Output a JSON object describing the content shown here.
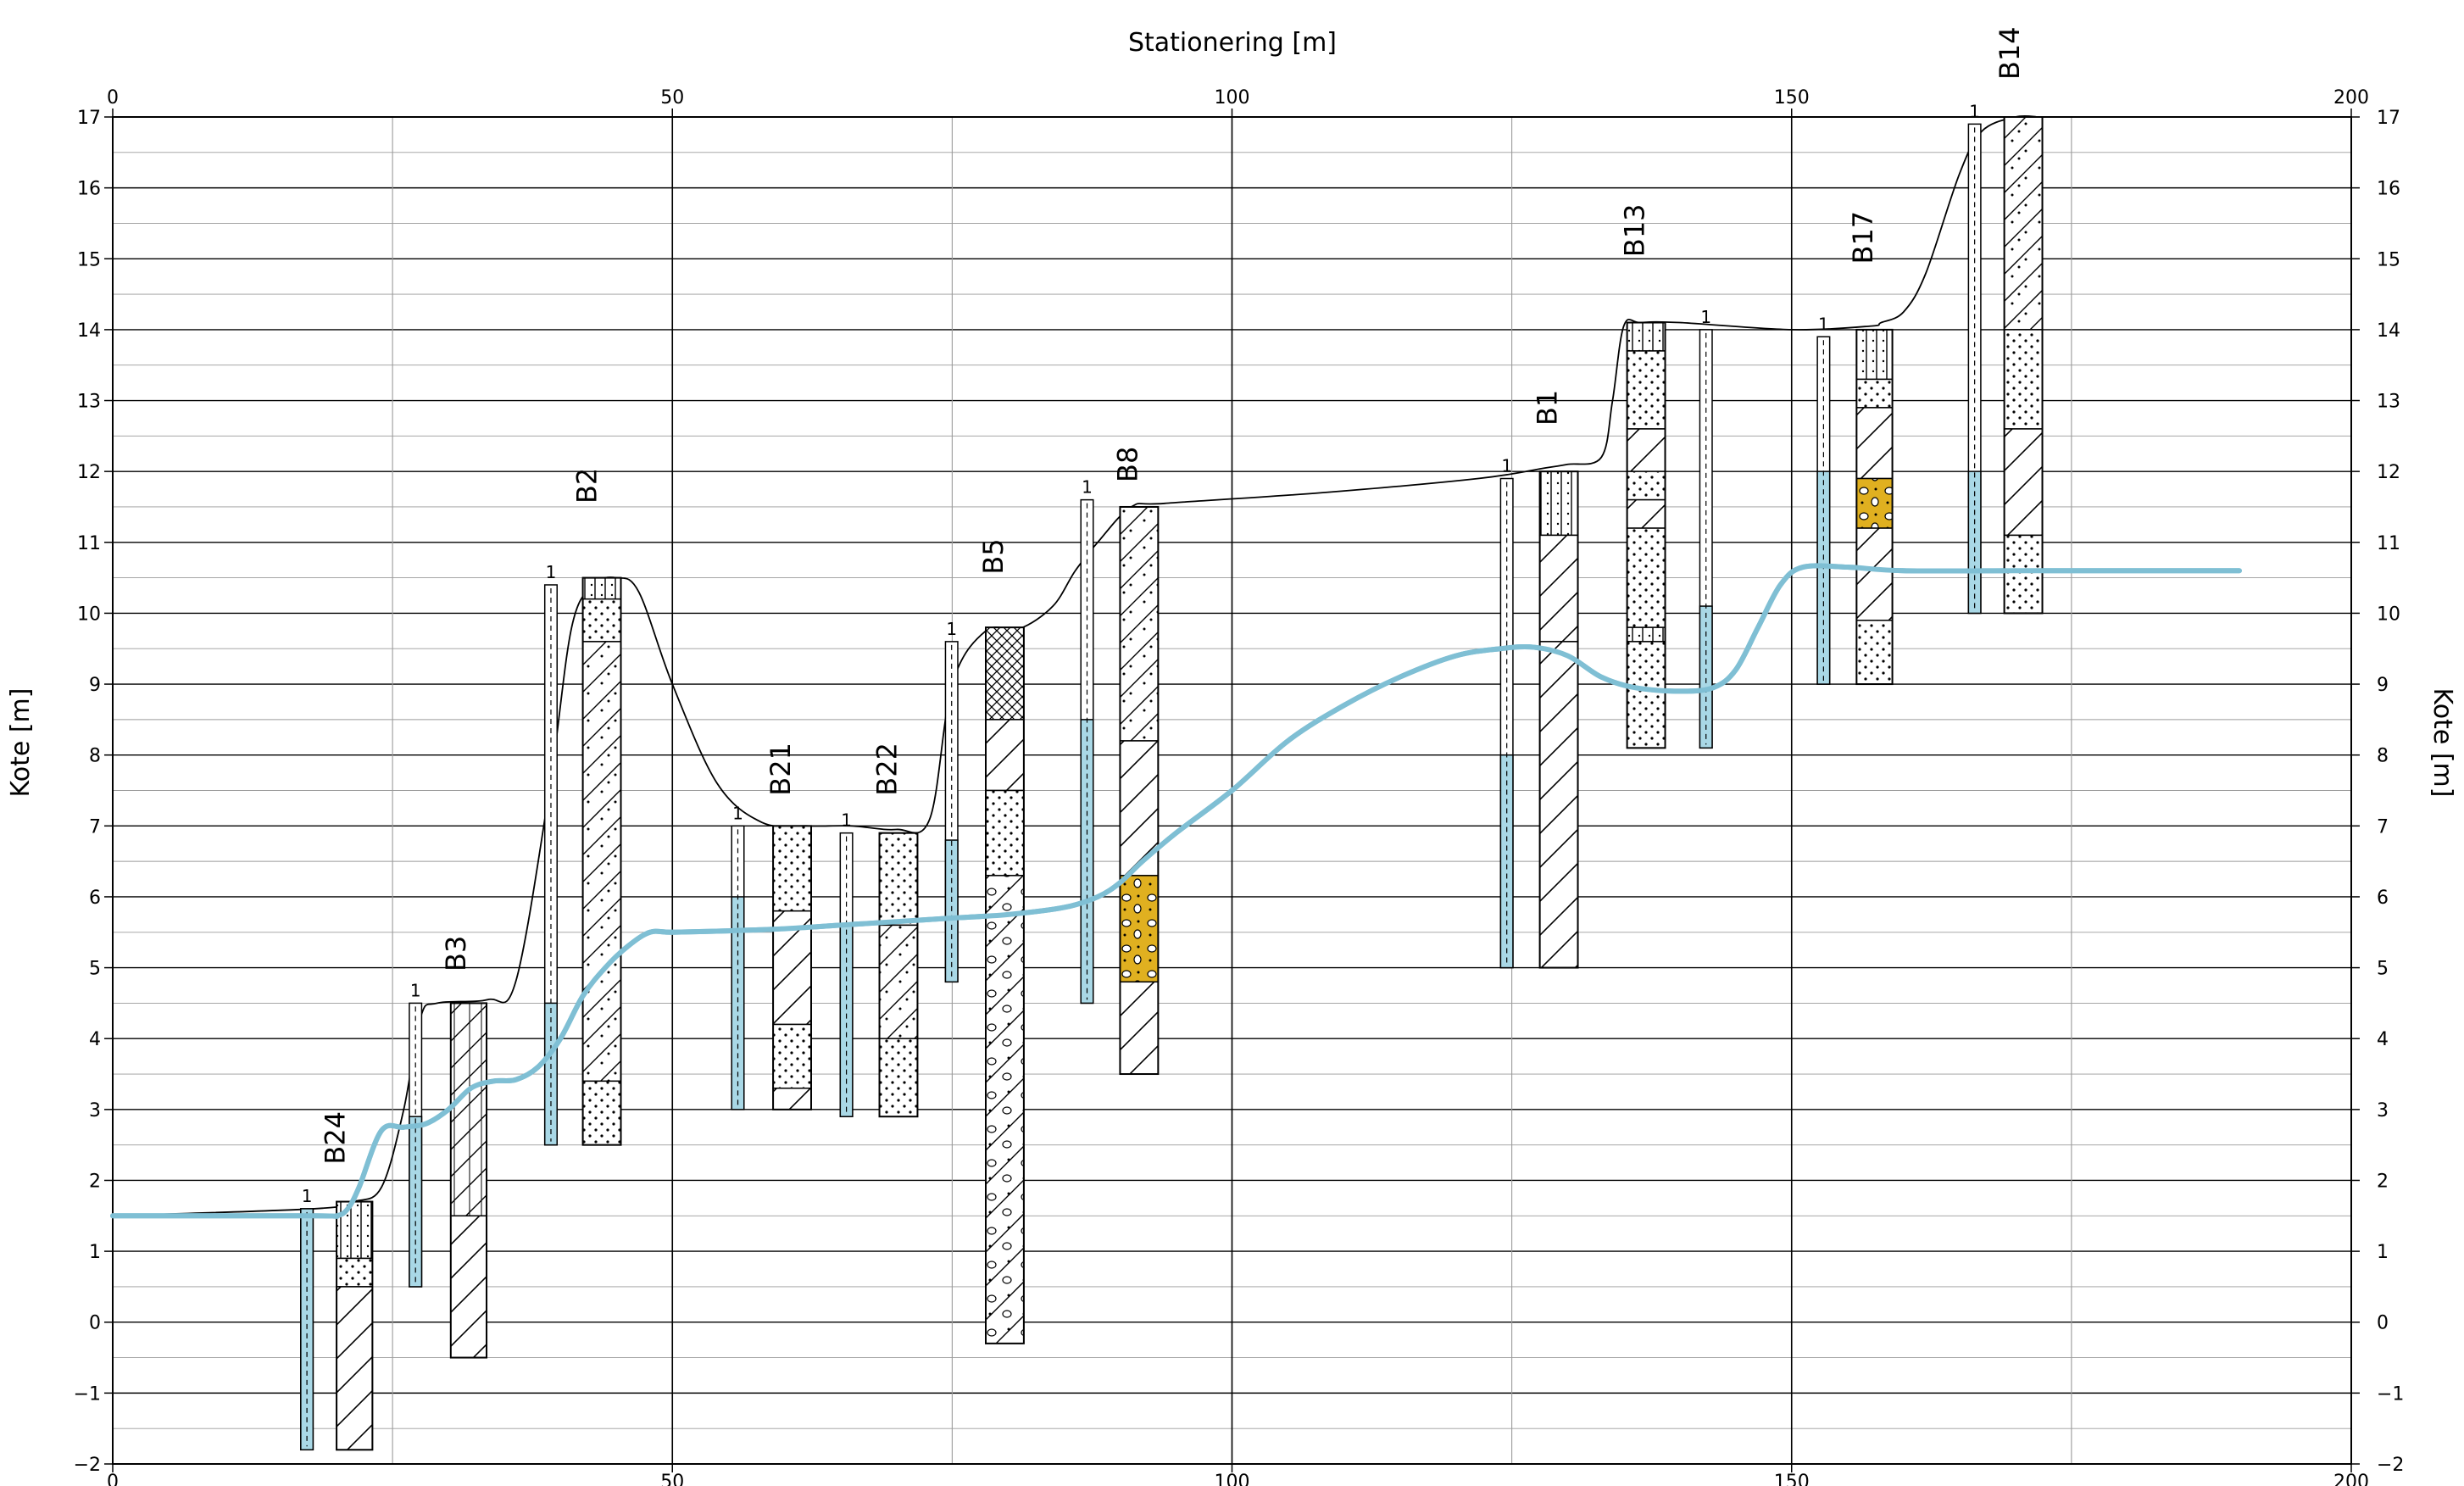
{
  "axes": {
    "x_title": "Stationering [m]",
    "y_title_left": "Kote [m]",
    "y_title_right": "Kote [m]",
    "x_range": [
      0,
      200
    ],
    "y_range": [
      -2,
      17
    ],
    "x_ticks": [
      0,
      50,
      100,
      150,
      200
    ],
    "y_ticks": [
      -2,
      -1,
      0,
      1,
      2,
      3,
      4,
      5,
      6,
      7,
      8,
      9,
      10,
      11,
      12,
      13,
      14,
      15,
      16,
      17
    ]
  },
  "colors": {
    "groundwater": "#7fbfd4",
    "filter": "#a9d8e6",
    "gravel": "#e0b020",
    "line": "#000000",
    "grid": "#000000"
  },
  "terrain_line": [
    [
      0,
      1.5
    ],
    [
      18,
      1.6
    ],
    [
      21.5,
      1.7
    ],
    [
      24,
      1.9
    ],
    [
      26,
      3.0
    ],
    [
      27.5,
      4.3
    ],
    [
      29,
      4.5
    ],
    [
      33.5,
      4.55
    ],
    [
      36,
      4.8
    ],
    [
      39,
      7.5
    ],
    [
      41,
      9.8
    ],
    [
      43,
      10.4
    ],
    [
      45,
      10.5
    ],
    [
      47,
      10.3
    ],
    [
      50,
      9.0
    ],
    [
      54,
      7.6
    ],
    [
      58,
      7.05
    ],
    [
      62,
      7.0
    ],
    [
      66,
      7.0
    ],
    [
      70,
      6.95
    ],
    [
      73,
      7.1
    ],
    [
      75,
      9.0
    ],
    [
      78,
      9.75
    ],
    [
      81,
      9.78
    ],
    [
      84,
      10.1
    ],
    [
      86,
      10.6
    ],
    [
      88,
      11.0
    ],
    [
      91,
      11.5
    ],
    [
      94,
      11.55
    ],
    [
      108,
      11.7
    ],
    [
      122,
      11.9
    ],
    [
      128,
      12.05
    ],
    [
      130,
      12.1
    ],
    [
      133,
      12.2
    ],
    [
      134,
      13.0
    ],
    [
      135,
      14.05
    ],
    [
      136.5,
      14.1
    ],
    [
      140,
      14.1
    ],
    [
      150,
      14.0
    ],
    [
      157,
      14.05
    ],
    [
      158,
      14.1
    ],
    [
      160,
      14.25
    ],
    [
      162,
      14.8
    ],
    [
      165,
      16.2
    ],
    [
      167,
      16.8
    ],
    [
      170,
      17.0
    ],
    [
      172,
      17.0
    ]
  ],
  "groundwater_line": [
    [
      0,
      1.5
    ],
    [
      18,
      1.5
    ],
    [
      20,
      1.5
    ],
    [
      21,
      1.6
    ],
    [
      22,
      1.9
    ],
    [
      24,
      2.7
    ],
    [
      26,
      2.75
    ],
    [
      28,
      2.8
    ],
    [
      30,
      3.0
    ],
    [
      32,
      3.3
    ],
    [
      34,
      3.4
    ],
    [
      36,
      3.42
    ],
    [
      38,
      3.6
    ],
    [
      40,
      4.0
    ],
    [
      42,
      4.6
    ],
    [
      44,
      5.0
    ],
    [
      46,
      5.3
    ],
    [
      48,
      5.5
    ],
    [
      50,
      5.5
    ],
    [
      55,
      5.52
    ],
    [
      60,
      5.55
    ],
    [
      65,
      5.6
    ],
    [
      70,
      5.65
    ],
    [
      75,
      5.7
    ],
    [
      80,
      5.75
    ],
    [
      85,
      5.85
    ],
    [
      88,
      6.0
    ],
    [
      90,
      6.2
    ],
    [
      92,
      6.5
    ],
    [
      95,
      6.9
    ],
    [
      100,
      7.5
    ],
    [
      105,
      8.2
    ],
    [
      110,
      8.7
    ],
    [
      115,
      9.1
    ],
    [
      120,
      9.4
    ],
    [
      124,
      9.5
    ],
    [
      127,
      9.52
    ],
    [
      130,
      9.4
    ],
    [
      133,
      9.1
    ],
    [
      136,
      8.95
    ],
    [
      140,
      8.9
    ],
    [
      143,
      8.95
    ],
    [
      145,
      9.2
    ],
    [
      147,
      9.8
    ],
    [
      149,
      10.4
    ],
    [
      151,
      10.65
    ],
    [
      155,
      10.65
    ],
    [
      160,
      10.6
    ],
    [
      170,
      10.6
    ],
    [
      175,
      10.6
    ],
    [
      190,
      10.6
    ]
  ],
  "boreholes": [
    {
      "name": "B24",
      "label_x": 20.7,
      "label_y": 2.6,
      "x_left": 20,
      "width": 3.2,
      "top": 1.7,
      "bottom": -1.8,
      "layers": [
        {
          "top": 1.7,
          "bottom": 0.9,
          "pattern": "silt"
        },
        {
          "top": 0.9,
          "bottom": 0.5,
          "pattern": "sand"
        },
        {
          "top": 0.5,
          "bottom": -1.8,
          "pattern": "clay"
        }
      ],
      "well": {
        "x_left": 16.8,
        "width": 1.1,
        "top": 1.6,
        "bottom": -1.8,
        "label": "1",
        "filter_top": 1.6,
        "filter_bottom": -1.8
      }
    },
    {
      "name": "B3",
      "label_x": 31.5,
      "label_y": 5.2,
      "x_left": 30.2,
      "width": 3.2,
      "top": 4.5,
      "bottom": -0.5,
      "layers": [
        {
          "top": 4.5,
          "bottom": 1.5,
          "pattern": "siltclay"
        },
        {
          "top": 1.5,
          "bottom": -0.5,
          "pattern": "clay"
        }
      ],
      "well": {
        "x_left": 26.5,
        "width": 1.1,
        "top": 4.5,
        "bottom": 0.5,
        "label": "1",
        "filter_top": 2.9,
        "filter_bottom": 0.5
      }
    },
    {
      "name": "B2",
      "label_x": 43.2,
      "label_y": 11.8,
      "x_left": 42,
      "width": 3.4,
      "top": 10.5,
      "bottom": 2.5,
      "layers": [
        {
          "top": 10.5,
          "bottom": 10.2,
          "pattern": "silt"
        },
        {
          "top": 10.2,
          "bottom": 9.6,
          "pattern": "sand"
        },
        {
          "top": 9.6,
          "bottom": 3.4,
          "pattern": "sandclay"
        },
        {
          "top": 3.4,
          "bottom": 2.5,
          "pattern": "sand"
        }
      ],
      "well": {
        "x_left": 38.6,
        "width": 1.1,
        "top": 10.4,
        "bottom": 2.5,
        "label": "1",
        "filter_top": 4.5,
        "filter_bottom": 2.5
      }
    },
    {
      "name": "B21",
      "label_x": 60.5,
      "label_y": 7.8,
      "x_left": 59,
      "width": 3.4,
      "top": 7.0,
      "bottom": 3.0,
      "layers": [
        {
          "top": 7.0,
          "bottom": 5.8,
          "pattern": "sand"
        },
        {
          "top": 5.8,
          "bottom": 4.2,
          "pattern": "clay"
        },
        {
          "top": 4.2,
          "bottom": 3.3,
          "pattern": "sand"
        },
        {
          "top": 3.3,
          "bottom": 3.0,
          "pattern": "clay"
        }
      ],
      "well": {
        "x_left": 55.3,
        "width": 1.1,
        "top": 7.0,
        "bottom": 3.0,
        "label": "1",
        "filter_top": 6.0,
        "filter_bottom": 3.0
      }
    },
    {
      "name": "B22",
      "label_x": 70,
      "label_y": 7.8,
      "x_left": 68.5,
      "width": 3.4,
      "top": 6.9,
      "bottom": 2.9,
      "layers": [
        {
          "top": 6.9,
          "bottom": 5.6,
          "pattern": "sand"
        },
        {
          "top": 5.6,
          "bottom": 4.0,
          "pattern": "sandclay"
        },
        {
          "top": 4.0,
          "bottom": 2.9,
          "pattern": "sand"
        }
      ],
      "well": {
        "x_left": 65,
        "width": 1.1,
        "top": 6.9,
        "bottom": 2.9,
        "label": "1",
        "filter_top": 5.6,
        "filter_bottom": 2.9
      }
    },
    {
      "name": "B5",
      "label_x": 79.5,
      "label_y": 10.8,
      "x_left": 78,
      "width": 3.4,
      "top": 9.8,
      "bottom": -0.3,
      "layers": [
        {
          "top": 9.8,
          "bottom": 8.5,
          "pattern": "cross"
        },
        {
          "top": 8.5,
          "bottom": 7.5,
          "pattern": "clay"
        },
        {
          "top": 7.5,
          "bottom": 6.3,
          "pattern": "sand"
        },
        {
          "top": 6.3,
          "bottom": -0.3,
          "pattern": "stones"
        }
      ],
      "well": {
        "x_left": 74.4,
        "width": 1.1,
        "top": 9.6,
        "bottom": 4.8,
        "label": "1",
        "filter_top": 6.8,
        "filter_bottom": 4.8
      }
    },
    {
      "name": "B8",
      "label_x": 91.5,
      "label_y": 12.1,
      "x_left": 90,
      "width": 3.4,
      "top": 11.5,
      "bottom": 3.5,
      "layers": [
        {
          "top": 11.5,
          "bottom": 8.2,
          "pattern": "sandclay"
        },
        {
          "top": 8.2,
          "bottom": 6.3,
          "pattern": "clay"
        },
        {
          "top": 6.3,
          "bottom": 4.8,
          "pattern": "gravel"
        },
        {
          "top": 4.8,
          "bottom": 3.5,
          "pattern": "clay"
        }
      ],
      "well": {
        "x_left": 86.5,
        "width": 1.1,
        "top": 11.6,
        "bottom": 4.5,
        "label": "1",
        "filter_top": 8.5,
        "filter_bottom": 4.5
      }
    },
    {
      "name": "B1",
      "label_x": 129,
      "label_y": 12.9,
      "x_left": 127.5,
      "width": 3.4,
      "top": 12.0,
      "bottom": 5.0,
      "layers": [
        {
          "top": 12.0,
          "bottom": 11.1,
          "pattern": "silt"
        },
        {
          "top": 11.1,
          "bottom": 9.6,
          "pattern": "clay"
        },
        {
          "top": 9.6,
          "bottom": 5.0,
          "pattern": "clay"
        }
      ],
      "well": {
        "x_left": 124,
        "width": 1.1,
        "top": 11.9,
        "bottom": 5.0,
        "label": "1",
        "filter_top": 8.0,
        "filter_bottom": 5.0
      }
    },
    {
      "name": "B13",
      "label_x": 136.8,
      "label_y": 15.4,
      "x_left": 135.3,
      "width": 3.4,
      "top": 14.1,
      "bottom": 8.1,
      "layers": [
        {
          "top": 14.1,
          "bottom": 13.7,
          "pattern": "silt"
        },
        {
          "top": 13.7,
          "bottom": 12.6,
          "pattern": "sand"
        },
        {
          "top": 12.6,
          "bottom": 12.0,
          "pattern": "clay"
        },
        {
          "top": 12.0,
          "bottom": 11.6,
          "pattern": "sand"
        },
        {
          "top": 11.6,
          "bottom": 11.2,
          "pattern": "clay"
        },
        {
          "top": 11.2,
          "bottom": 9.8,
          "pattern": "sand"
        },
        {
          "top": 9.8,
          "bottom": 9.6,
          "pattern": "silt"
        },
        {
          "top": 9.6,
          "bottom": 8.1,
          "pattern": "sand"
        }
      ],
      "well": {
        "x_left": 141.8,
        "width": 1.1,
        "top": 14.0,
        "bottom": 8.1,
        "label": "1",
        "filter_top": 10.1,
        "filter_bottom": 8.1
      }
    },
    {
      "name": "B17",
      "label_x": 157.2,
      "label_y": 15.3,
      "x_left": 155.8,
      "width": 3.2,
      "top": 14.0,
      "bottom": 9.0,
      "layers": [
        {
          "top": 14.0,
          "bottom": 13.3,
          "pattern": "silt"
        },
        {
          "top": 13.3,
          "bottom": 12.9,
          "pattern": "sand"
        },
        {
          "top": 12.9,
          "bottom": 11.9,
          "pattern": "clay"
        },
        {
          "top": 11.9,
          "bottom": 11.2,
          "pattern": "gravel"
        },
        {
          "top": 11.2,
          "bottom": 9.9,
          "pattern": "clay"
        },
        {
          "top": 9.9,
          "bottom": 9.0,
          "pattern": "sand"
        }
      ],
      "well": {
        "x_left": 152.3,
        "width": 1.1,
        "top": 13.9,
        "bottom": 9.0,
        "label": "1",
        "filter_top": 12.0,
        "filter_bottom": 9.0
      }
    },
    {
      "name": "B14",
      "label_x": 170.3,
      "label_y": 17.9,
      "x_left": 169,
      "width": 3.4,
      "top": 17.0,
      "bottom": 10.0,
      "layers": [
        {
          "top": 17.0,
          "bottom": 14.0,
          "pattern": "sandclay"
        },
        {
          "top": 14.0,
          "bottom": 12.6,
          "pattern": "sand"
        },
        {
          "top": 12.6,
          "bottom": 11.1,
          "pattern": "clay"
        },
        {
          "top": 11.1,
          "bottom": 10.0,
          "pattern": "sand"
        }
      ],
      "well": {
        "x_left": 165.8,
        "width": 1.1,
        "top": 16.9,
        "bottom": 10.0,
        "label": "1",
        "filter_top": 12.0,
        "filter_bottom": 10.0
      }
    }
  ]
}
